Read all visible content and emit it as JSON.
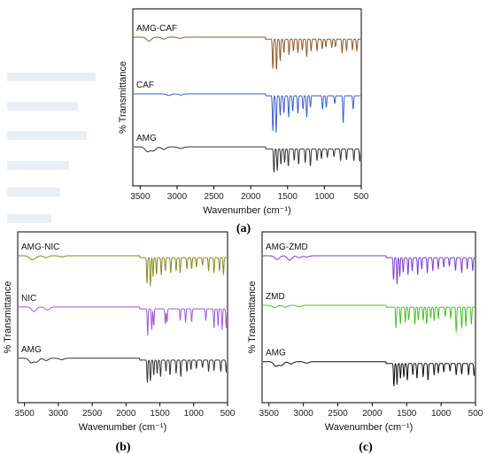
{
  "panel_labels": [
    "(a)",
    "(b)",
    "(c)"
  ],
  "chart_data": [
    {
      "type": "line",
      "panel": "(a)",
      "xlabel": "Wavenumber (cm⁻¹)",
      "ylabel": "% Transmittance",
      "x_reversed": true,
      "xlim": [
        3600,
        500
      ],
      "xticks": [
        3500,
        3000,
        2500,
        2000,
        1500,
        1000,
        500
      ],
      "y_ticks_shown": false,
      "series": [
        {
          "name": "AMG-CAF",
          "color": "#8b5a2b",
          "offset": 0.84,
          "peaks": [
            [
              3380,
              0.1
            ],
            [
              3180,
              0.05
            ],
            [
              2960,
              0.03
            ],
            [
              1700,
              0.75
            ],
            [
              1650,
              0.8
            ],
            [
              1600,
              0.55
            ],
            [
              1550,
              0.35
            ],
            [
              1480,
              0.4
            ],
            [
              1420,
              0.3
            ],
            [
              1360,
              0.35
            ],
            [
              1300,
              0.28
            ],
            [
              1240,
              0.45
            ],
            [
              1180,
              0.3
            ],
            [
              1100,
              0.3
            ],
            [
              1030,
              0.25
            ],
            [
              980,
              0.2
            ],
            [
              900,
              0.22
            ],
            [
              850,
              0.2
            ],
            [
              760,
              0.35
            ],
            [
              700,
              0.3
            ],
            [
              620,
              0.28
            ],
            [
              560,
              0.3
            ]
          ]
        },
        {
          "name": "CAF",
          "color": "#3a5fcd",
          "offset": 0.52,
          "peaks": [
            [
              3110,
              0.04
            ],
            [
              2950,
              0.03
            ],
            [
              1700,
              0.9
            ],
            [
              1655,
              0.95
            ],
            [
              1600,
              0.5
            ],
            [
              1550,
              0.45
            ],
            [
              1485,
              0.55
            ],
            [
              1430,
              0.4
            ],
            [
              1360,
              0.45
            ],
            [
              1290,
              0.35
            ],
            [
              1240,
              0.55
            ],
            [
              1190,
              0.3
            ],
            [
              1025,
              0.35
            ],
            [
              975,
              0.3
            ],
            [
              860,
              0.2
            ],
            [
              745,
              0.7
            ],
            [
              610,
              0.35
            ],
            [
              480,
              0.3
            ]
          ]
        },
        {
          "name": "AMG",
          "color": "#333333",
          "offset": 0.22,
          "peaks": [
            [
              3400,
              0.12
            ],
            [
              3320,
              0.1
            ],
            [
              3180,
              0.06
            ],
            [
              2950,
              0.04
            ],
            [
              1685,
              0.6
            ],
            [
              1640,
              0.55
            ],
            [
              1590,
              0.4
            ],
            [
              1540,
              0.35
            ],
            [
              1490,
              0.45
            ],
            [
              1410,
              0.3
            ],
            [
              1350,
              0.4
            ],
            [
              1260,
              0.35
            ],
            [
              1190,
              0.45
            ],
            [
              1100,
              0.3
            ],
            [
              1040,
              0.25
            ],
            [
              960,
              0.22
            ],
            [
              870,
              0.2
            ],
            [
              780,
              0.3
            ],
            [
              700,
              0.28
            ],
            [
              600,
              0.3
            ],
            [
              520,
              0.32
            ]
          ]
        }
      ]
    },
    {
      "type": "line",
      "panel": "(b)",
      "xlabel": "Wavenumber (cm⁻¹)",
      "ylabel": "% Transmittance",
      "x_reversed": true,
      "xlim": [
        3600,
        500
      ],
      "xticks": [
        3500,
        3000,
        2500,
        2000,
        1500,
        1000,
        500
      ],
      "y_ticks_shown": false,
      "series": [
        {
          "name": "AMG-NIC",
          "color": "#8a8a1e",
          "offset": 0.86,
          "peaks": [
            [
              3400,
              0.08
            ],
            [
              3350,
              0.06
            ],
            [
              3180,
              0.05
            ],
            [
              2950,
              0.03
            ],
            [
              1690,
              0.7
            ],
            [
              1640,
              0.75
            ],
            [
              1600,
              0.5
            ],
            [
              1550,
              0.45
            ],
            [
              1480,
              0.45
            ],
            [
              1420,
              0.35
            ],
            [
              1340,
              0.4
            ],
            [
              1260,
              0.35
            ],
            [
              1200,
              0.4
            ],
            [
              1100,
              0.3
            ],
            [
              1030,
              0.3
            ],
            [
              960,
              0.25
            ],
            [
              870,
              0.2
            ],
            [
              780,
              0.35
            ],
            [
              700,
              0.4
            ],
            [
              620,
              0.35
            ],
            [
              560,
              0.45
            ]
          ]
        },
        {
          "name": "NIC",
          "color": "#9b59e0",
          "offset": 0.56,
          "peaks": [
            [
              3360,
              0.12
            ],
            [
              3160,
              0.08
            ],
            [
              1680,
              0.7
            ],
            [
              1620,
              0.55
            ],
            [
              1590,
              0.45
            ],
            [
              1420,
              0.4
            ],
            [
              1395,
              0.35
            ],
            [
              1200,
              0.3
            ],
            [
              1120,
              0.35
            ],
            [
              1030,
              0.35
            ],
            [
              820,
              0.3
            ],
            [
              700,
              0.5
            ],
            [
              640,
              0.45
            ],
            [
              580,
              0.55
            ],
            [
              520,
              0.5
            ]
          ]
        },
        {
          "name": "AMG",
          "color": "#333333",
          "offset": 0.26,
          "peaks": [
            [
              3400,
              0.12
            ],
            [
              3320,
              0.1
            ],
            [
              3180,
              0.06
            ],
            [
              2950,
              0.04
            ],
            [
              1685,
              0.6
            ],
            [
              1640,
              0.55
            ],
            [
              1590,
              0.4
            ],
            [
              1540,
              0.35
            ],
            [
              1490,
              0.45
            ],
            [
              1410,
              0.3
            ],
            [
              1350,
              0.4
            ],
            [
              1260,
              0.35
            ],
            [
              1190,
              0.45
            ],
            [
              1100,
              0.3
            ],
            [
              1040,
              0.25
            ],
            [
              960,
              0.22
            ],
            [
              870,
              0.2
            ],
            [
              780,
              0.3
            ],
            [
              700,
              0.28
            ],
            [
              600,
              0.3
            ],
            [
              520,
              0.32
            ]
          ]
        }
      ]
    },
    {
      "type": "line",
      "panel": "(c)",
      "xlabel": "Wavenumber (cm⁻¹)",
      "ylabel": "% Transmittance",
      "x_reversed": true,
      "xlim": [
        3600,
        500
      ],
      "xticks": [
        3500,
        3000,
        2500,
        2000,
        1500,
        1000,
        500
      ],
      "y_ticks_shown": false,
      "series": [
        {
          "name": "AMG-ZMD",
          "color": "#7b3fd0",
          "offset": 0.86,
          "peaks": [
            [
              3380,
              0.1
            ],
            [
              3200,
              0.12
            ],
            [
              3060,
              0.05
            ],
            [
              2950,
              0.03
            ],
            [
              1690,
              0.6
            ],
            [
              1640,
              0.7
            ],
            [
              1600,
              0.5
            ],
            [
              1550,
              0.4
            ],
            [
              1480,
              0.45
            ],
            [
              1420,
              0.35
            ],
            [
              1340,
              0.45
            ],
            [
              1280,
              0.3
            ],
            [
              1200,
              0.4
            ],
            [
              1120,
              0.35
            ],
            [
              1040,
              0.3
            ],
            [
              960,
              0.25
            ],
            [
              880,
              0.22
            ],
            [
              790,
              0.35
            ],
            [
              700,
              0.4
            ],
            [
              620,
              0.3
            ],
            [
              540,
              0.35
            ]
          ]
        },
        {
          "name": "ZMD",
          "color": "#49c02a",
          "offset": 0.57,
          "peaks": [
            [
              3420,
              0.06
            ],
            [
              3260,
              0.05
            ],
            [
              3060,
              0.04
            ],
            [
              1655,
              0.55
            ],
            [
              1590,
              0.45
            ],
            [
              1520,
              0.4
            ],
            [
              1470,
              0.35
            ],
            [
              1380,
              0.45
            ],
            [
              1330,
              0.35
            ],
            [
              1260,
              0.35
            ],
            [
              1210,
              0.45
            ],
            [
              1150,
              0.3
            ],
            [
              1100,
              0.35
            ],
            [
              1040,
              0.3
            ],
            [
              940,
              0.25
            ],
            [
              860,
              0.3
            ],
            [
              780,
              0.65
            ],
            [
              700,
              0.55
            ],
            [
              640,
              0.5
            ],
            [
              560,
              0.45
            ]
          ]
        },
        {
          "name": "AMG",
          "color": "#111111",
          "offset": 0.24,
          "peaks": [
            [
              3400,
              0.12
            ],
            [
              3320,
              0.1
            ],
            [
              3180,
              0.06
            ],
            [
              2950,
              0.04
            ],
            [
              1685,
              0.6
            ],
            [
              1640,
              0.55
            ],
            [
              1590,
              0.4
            ],
            [
              1540,
              0.35
            ],
            [
              1490,
              0.45
            ],
            [
              1410,
              0.3
            ],
            [
              1350,
              0.4
            ],
            [
              1260,
              0.35
            ],
            [
              1190,
              0.45
            ],
            [
              1100,
              0.3
            ],
            [
              1040,
              0.25
            ],
            [
              960,
              0.22
            ],
            [
              870,
              0.2
            ],
            [
              780,
              0.3
            ],
            [
              700,
              0.28
            ],
            [
              600,
              0.3
            ],
            [
              520,
              0.32
            ]
          ]
        }
      ]
    }
  ]
}
